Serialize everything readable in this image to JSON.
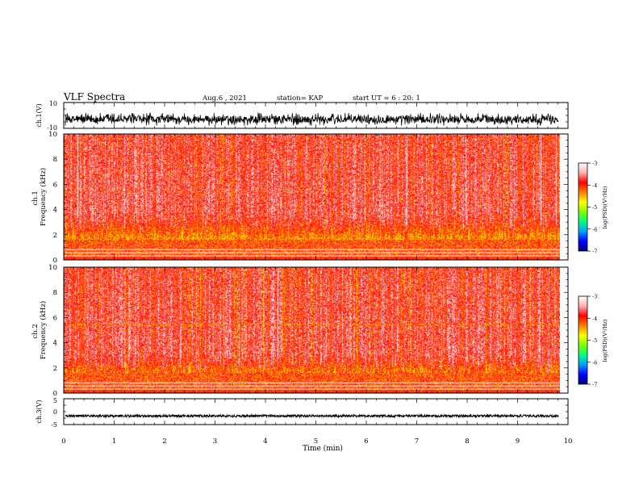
{
  "header": {
    "title": "VLF Spectra",
    "date": "Aug.6 , 2021",
    "station": "station= KAP",
    "start": "start UT = 6 : 20: 1"
  },
  "chart_data": [
    {
      "id": "ch1-waveform",
      "type": "line",
      "ylabel": "ch.1(V)",
      "ylim": [
        -10,
        10
      ],
      "y_ticks": [
        "10",
        "-10"
      ],
      "signal_range_V": [
        -8,
        2
      ],
      "xlim": [
        0,
        10
      ]
    },
    {
      "id": "ch1-spectrogram",
      "type": "heatmap",
      "ylabel": "ch.1\nFrequency (kHz)",
      "ylabel_lines": [
        "ch.1",
        "Frequency (kHz)"
      ],
      "ylim": [
        0,
        10
      ],
      "y_ticks": [
        "0",
        "2",
        "4",
        "6",
        "8",
        "10"
      ],
      "xlim": [
        0,
        9.83
      ],
      "strong_band_top_kHz": 3.2,
      "background_level": -3.6,
      "colorbar": {
        "label": "log(PSD)(V²/Hz)",
        "range": [
          -7,
          -3
        ],
        "ticks": [
          "-3",
          "-4",
          "-5",
          "-6",
          "-7"
        ],
        "colors": [
          "#000080",
          "#0000ff",
          "#00a0ff",
          "#00ff80",
          "#80ff00",
          "#ffff00",
          "#ff8000",
          "#ff0000",
          "#ffb0b0",
          "#ffffff"
        ]
      }
    },
    {
      "id": "ch2-spectrogram",
      "type": "heatmap",
      "ylabel": "ch.2\nFrequency (kHz)",
      "ylabel_lines": [
        "ch.2",
        "Frequency (kHz)"
      ],
      "ylim": [
        0,
        10
      ],
      "y_ticks": [
        "0",
        "2",
        "4",
        "6",
        "8",
        "10"
      ],
      "xlim": [
        0,
        9.83
      ],
      "strong_band_top_kHz": 2.6,
      "background_level": -3.6,
      "colorbar": {
        "label": "log(PSD)(V²/Hz)",
        "range": [
          -7,
          -3
        ],
        "ticks": [
          "-3",
          "-4",
          "-5",
          "-6",
          "-7"
        ],
        "colors": [
          "#000080",
          "#0000ff",
          "#00a0ff",
          "#00ff80",
          "#80ff00",
          "#ffff00",
          "#ff8000",
          "#ff0000",
          "#ffb0b0",
          "#ffffff"
        ]
      }
    },
    {
      "id": "ch3-waveform",
      "type": "line",
      "ylabel": "ch.3(V)",
      "ylim": [
        -5,
        5
      ],
      "y_ticks": [
        "5",
        "0",
        "-5"
      ],
      "signal_range_V": [
        -2.1,
        -1.2
      ],
      "xlim": [
        0,
        10
      ]
    }
  ],
  "x_axis": {
    "label": "Time (min)",
    "range": [
      0,
      10
    ],
    "ticks": [
      "0",
      "1",
      "2",
      "3",
      "4",
      "5",
      "6",
      "7",
      "8",
      "9",
      "10"
    ]
  }
}
